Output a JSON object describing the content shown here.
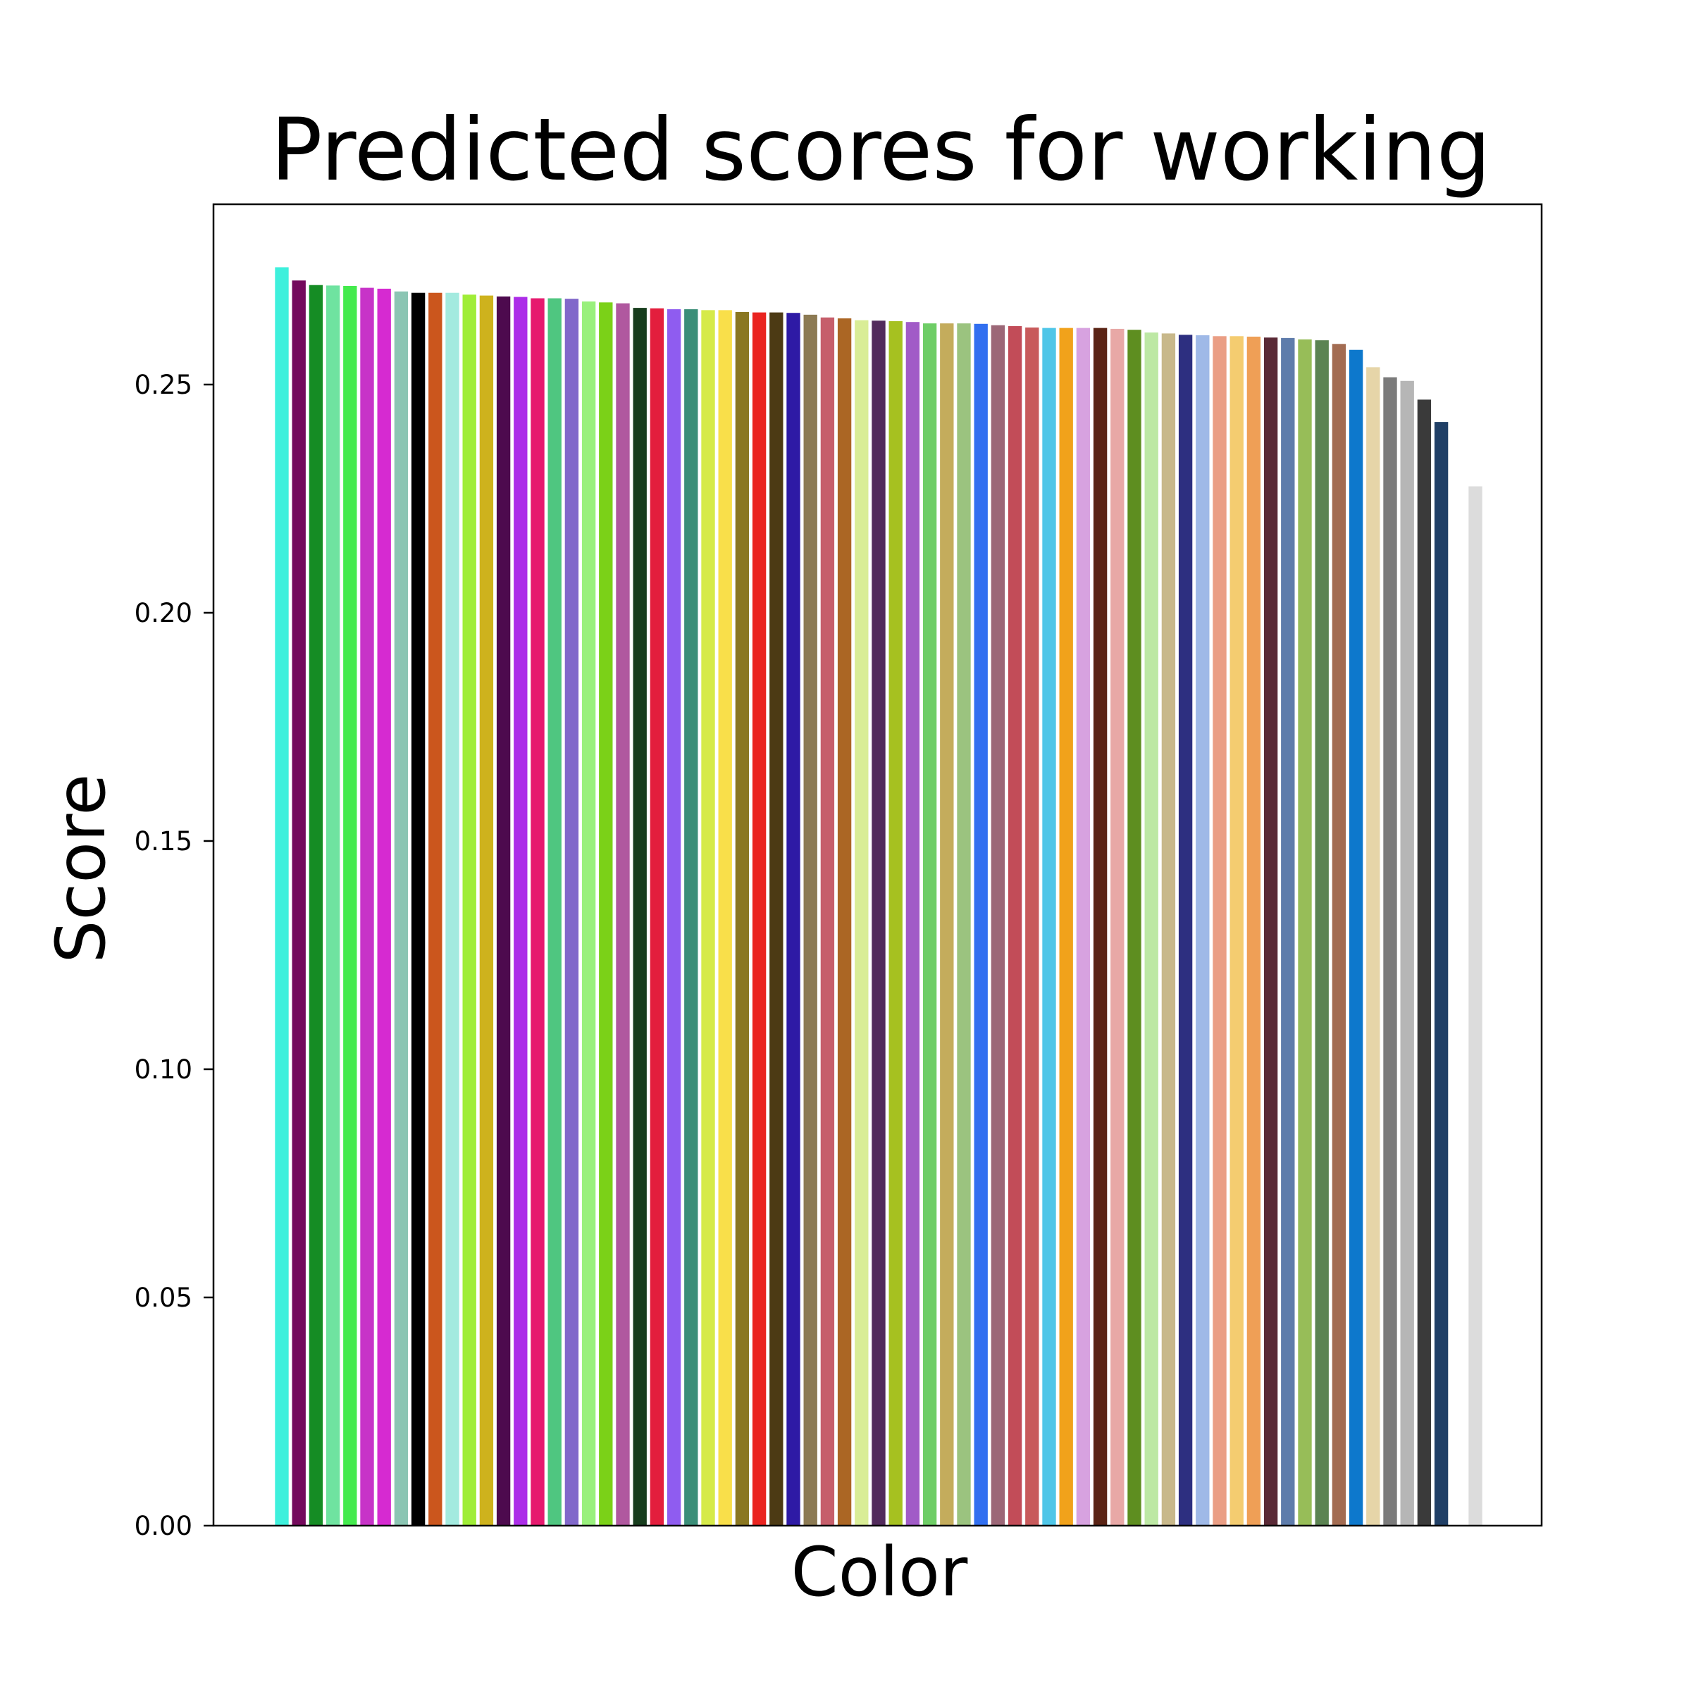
{
  "chart_data": {
    "type": "bar",
    "title": "Predicted scores for working",
    "xlabel": "Color",
    "ylabel": "Score",
    "ylim": [
      0,
      0.2895
    ],
    "yticks": [
      "0.00",
      "0.05",
      "0.10",
      "0.15",
      "0.20",
      "0.25"
    ],
    "grid": false,
    "bars": [
      {
        "color": "#3ef0dc",
        "value": 0.2757
      },
      {
        "color": "#740a5c",
        "value": 0.2728
      },
      {
        "color": "#158c24",
        "value": 0.2718
      },
      {
        "color": "#6fe3a0",
        "value": 0.2717
      },
      {
        "color": "#44ea4d",
        "value": 0.2716
      },
      {
        "color": "#c733c8",
        "value": 0.2712
      },
      {
        "color": "#d62ad1",
        "value": 0.271
      },
      {
        "color": "#8bc5b3",
        "value": 0.2704
      },
      {
        "color": "#000000",
        "value": 0.2701
      },
      {
        "color": "#cb561d",
        "value": 0.2701
      },
      {
        "color": "#a3eadf",
        "value": 0.2701
      },
      {
        "color": "#a0ed37",
        "value": 0.2697
      },
      {
        "color": "#ceb21d",
        "value": 0.2695
      },
      {
        "color": "#4d0a4e",
        "value": 0.2693
      },
      {
        "color": "#ac2de8",
        "value": 0.2692
      },
      {
        "color": "#e6196e",
        "value": 0.2689
      },
      {
        "color": "#4fc680",
        "value": 0.2689
      },
      {
        "color": "#8168ca",
        "value": 0.2688
      },
      {
        "color": "#99f07c",
        "value": 0.2682
      },
      {
        "color": "#7bd118",
        "value": 0.268
      },
      {
        "color": "#b0589f",
        "value": 0.2678
      },
      {
        "color": "#173d1d",
        "value": 0.2668
      },
      {
        "color": "#e31e3d",
        "value": 0.2667
      },
      {
        "color": "#8f5cf0",
        "value": 0.2665
      },
      {
        "color": "#3b8e78",
        "value": 0.2665
      },
      {
        "color": "#d6ea49",
        "value": 0.2663
      },
      {
        "color": "#f9df4a",
        "value": 0.2663
      },
      {
        "color": "#8a7721",
        "value": 0.2659
      },
      {
        "color": "#ea2420",
        "value": 0.2658
      },
      {
        "color": "#4c3a14",
        "value": 0.2658
      },
      {
        "color": "#2e1aa5",
        "value": 0.2657
      },
      {
        "color": "#8c7a53",
        "value": 0.2653
      },
      {
        "color": "#c65e6b",
        "value": 0.2647
      },
      {
        "color": "#ab6624",
        "value": 0.2645
      },
      {
        "color": "#d9ed96",
        "value": 0.2641
      },
      {
        "color": "#522b5c",
        "value": 0.264
      },
      {
        "color": "#a6c120",
        "value": 0.2639
      },
      {
        "color": "#a15bc7",
        "value": 0.2637
      },
      {
        "color": "#6ecd66",
        "value": 0.2634
      },
      {
        "color": "#c4ac5c",
        "value": 0.2634
      },
      {
        "color": "#9bc37f",
        "value": 0.2634
      },
      {
        "color": "#316ff0",
        "value": 0.2633
      },
      {
        "color": "#9c6777",
        "value": 0.263
      },
      {
        "color": "#c24c58",
        "value": 0.2628
      },
      {
        "color": "#c85a5b",
        "value": 0.2625
      },
      {
        "color": "#4fc6e8",
        "value": 0.2624
      },
      {
        "color": "#f1a21b",
        "value": 0.2624
      },
      {
        "color": "#d7a2e0",
        "value": 0.2624
      },
      {
        "color": "#5a2415",
        "value": 0.2624
      },
      {
        "color": "#e8a8a6",
        "value": 0.2622
      },
      {
        "color": "#5e8e20",
        "value": 0.262
      },
      {
        "color": "#bde8a4",
        "value": 0.2614
      },
      {
        "color": "#c8b88a",
        "value": 0.2612
      },
      {
        "color": "#2d2f80",
        "value": 0.2609
      },
      {
        "color": "#9fb9e7",
        "value": 0.2608
      },
      {
        "color": "#ea9e84",
        "value": 0.2606
      },
      {
        "color": "#f4cc70",
        "value": 0.2606
      },
      {
        "color": "#ef9f56",
        "value": 0.2605
      },
      {
        "color": "#5a2a36",
        "value": 0.2603
      },
      {
        "color": "#5e7cab",
        "value": 0.2602
      },
      {
        "color": "#97bd58",
        "value": 0.2599
      },
      {
        "color": "#5b8352",
        "value": 0.2597
      },
      {
        "color": "#a36c52",
        "value": 0.2589
      },
      {
        "color": "#0d78cc",
        "value": 0.2576
      },
      {
        "color": "#e6d5a8",
        "value": 0.2538
      },
      {
        "color": "#7b7b7b",
        "value": 0.2516
      },
      {
        "color": "#b6b6b6",
        "value": 0.2508
      },
      {
        "color": "#3a3a3a",
        "value": 0.2467
      },
      {
        "color": "#203f66",
        "value": 0.2418
      },
      {
        "color": "#ffffff",
        "value": 0.2412
      },
      {
        "color": "#dcdcdc",
        "value": 0.2277
      }
    ]
  }
}
